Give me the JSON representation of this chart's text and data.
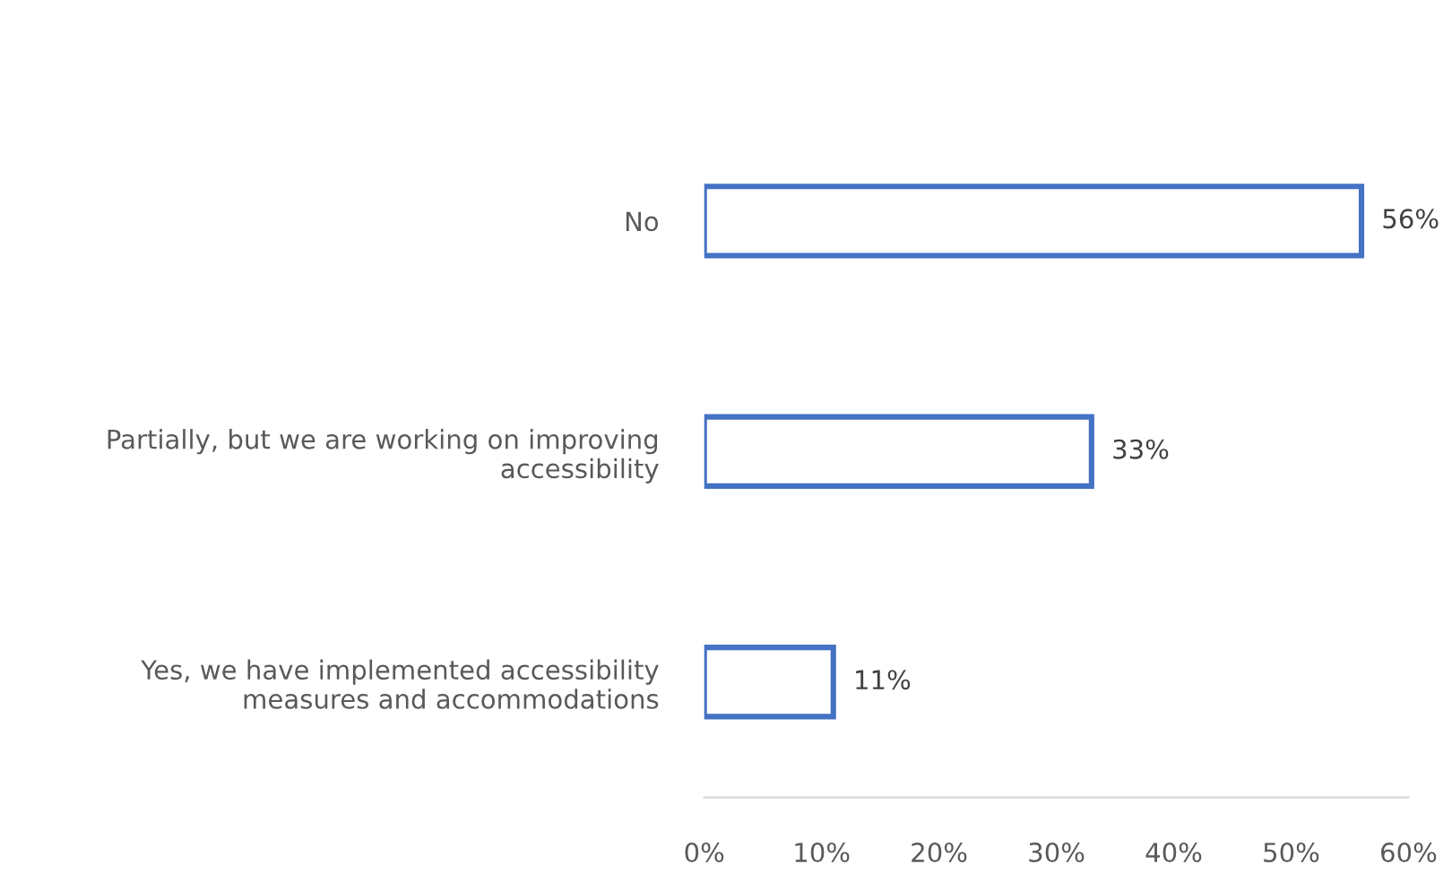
{
  "chart_data": {
    "type": "bar",
    "orientation": "horizontal",
    "categories": [
      "No",
      "Partially, but we are working on improving\naccessibility",
      "Yes, we have implemented accessibility\nmeasures and accommodations"
    ],
    "values": [
      56,
      33,
      11
    ],
    "value_labels": [
      "56%",
      "33%",
      "11%"
    ],
    "color": "#4472c4",
    "xlim": [
      0,
      60
    ],
    "xticks": [
      {
        "value": 0,
        "label": "0%"
      },
      {
        "value": 10,
        "label": "10%"
      },
      {
        "value": 20,
        "label": "20%"
      },
      {
        "value": 30,
        "label": "30%"
      },
      {
        "value": 40,
        "label": "40%"
      },
      {
        "value": 50,
        "label": "50%"
      },
      {
        "value": 60,
        "label": "60%"
      }
    ],
    "grid": false
  }
}
